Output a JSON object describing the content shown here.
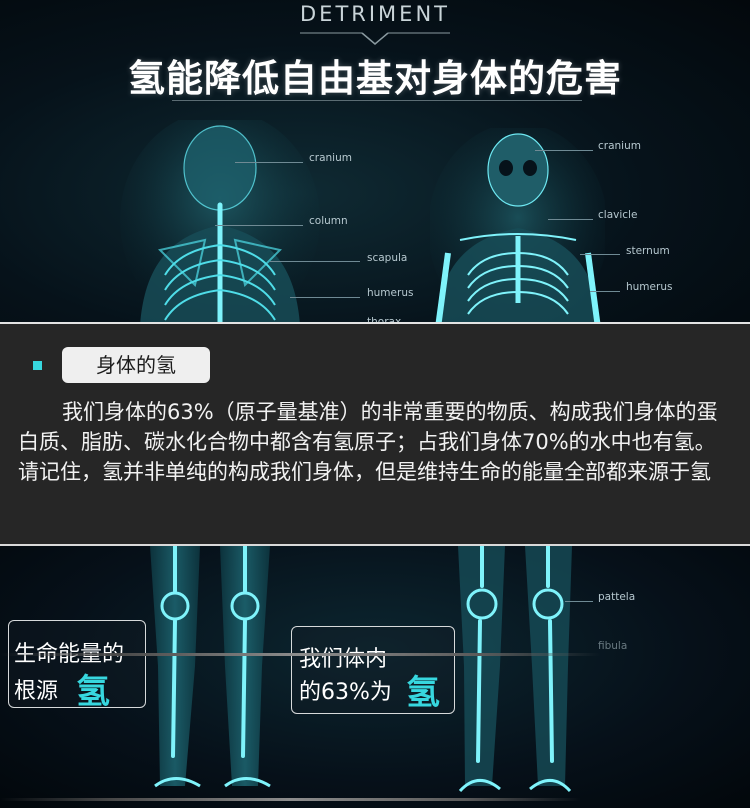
{
  "header": {
    "subtitle": "DETRIMENT",
    "title": "氢能降低自由基对身体的危害"
  },
  "anatomy_top": {
    "back": [
      "cranium",
      "column",
      "scapula",
      "humerus",
      "thorax"
    ],
    "front": [
      "cranium",
      "clavicle",
      "sternum",
      "humerus"
    ]
  },
  "section": {
    "tag": "身体的氢",
    "paragraph": "我们身体的63%（原子量基准）的非常重要的物质、构成我们身体的蛋白质、脂肪、碳水化合物中都含有氢原子；占我们身体70%的水中也有氢。请记住，氢并非单纯的构成我们身体，但是维持生命的能量全部都来源于氢"
  },
  "anatomy_bottom": {
    "front": [
      "pattela",
      "fibula"
    ]
  },
  "cards": [
    {
      "line1": "生命能量的",
      "line2": "根源",
      "highlight": "氢"
    },
    {
      "line1": "我们体内",
      "line2": "的63%为",
      "highlight": "氢"
    }
  ],
  "colors": {
    "accent": "#37d7df",
    "bone": "#3fd9e6",
    "panel": "#262626"
  }
}
